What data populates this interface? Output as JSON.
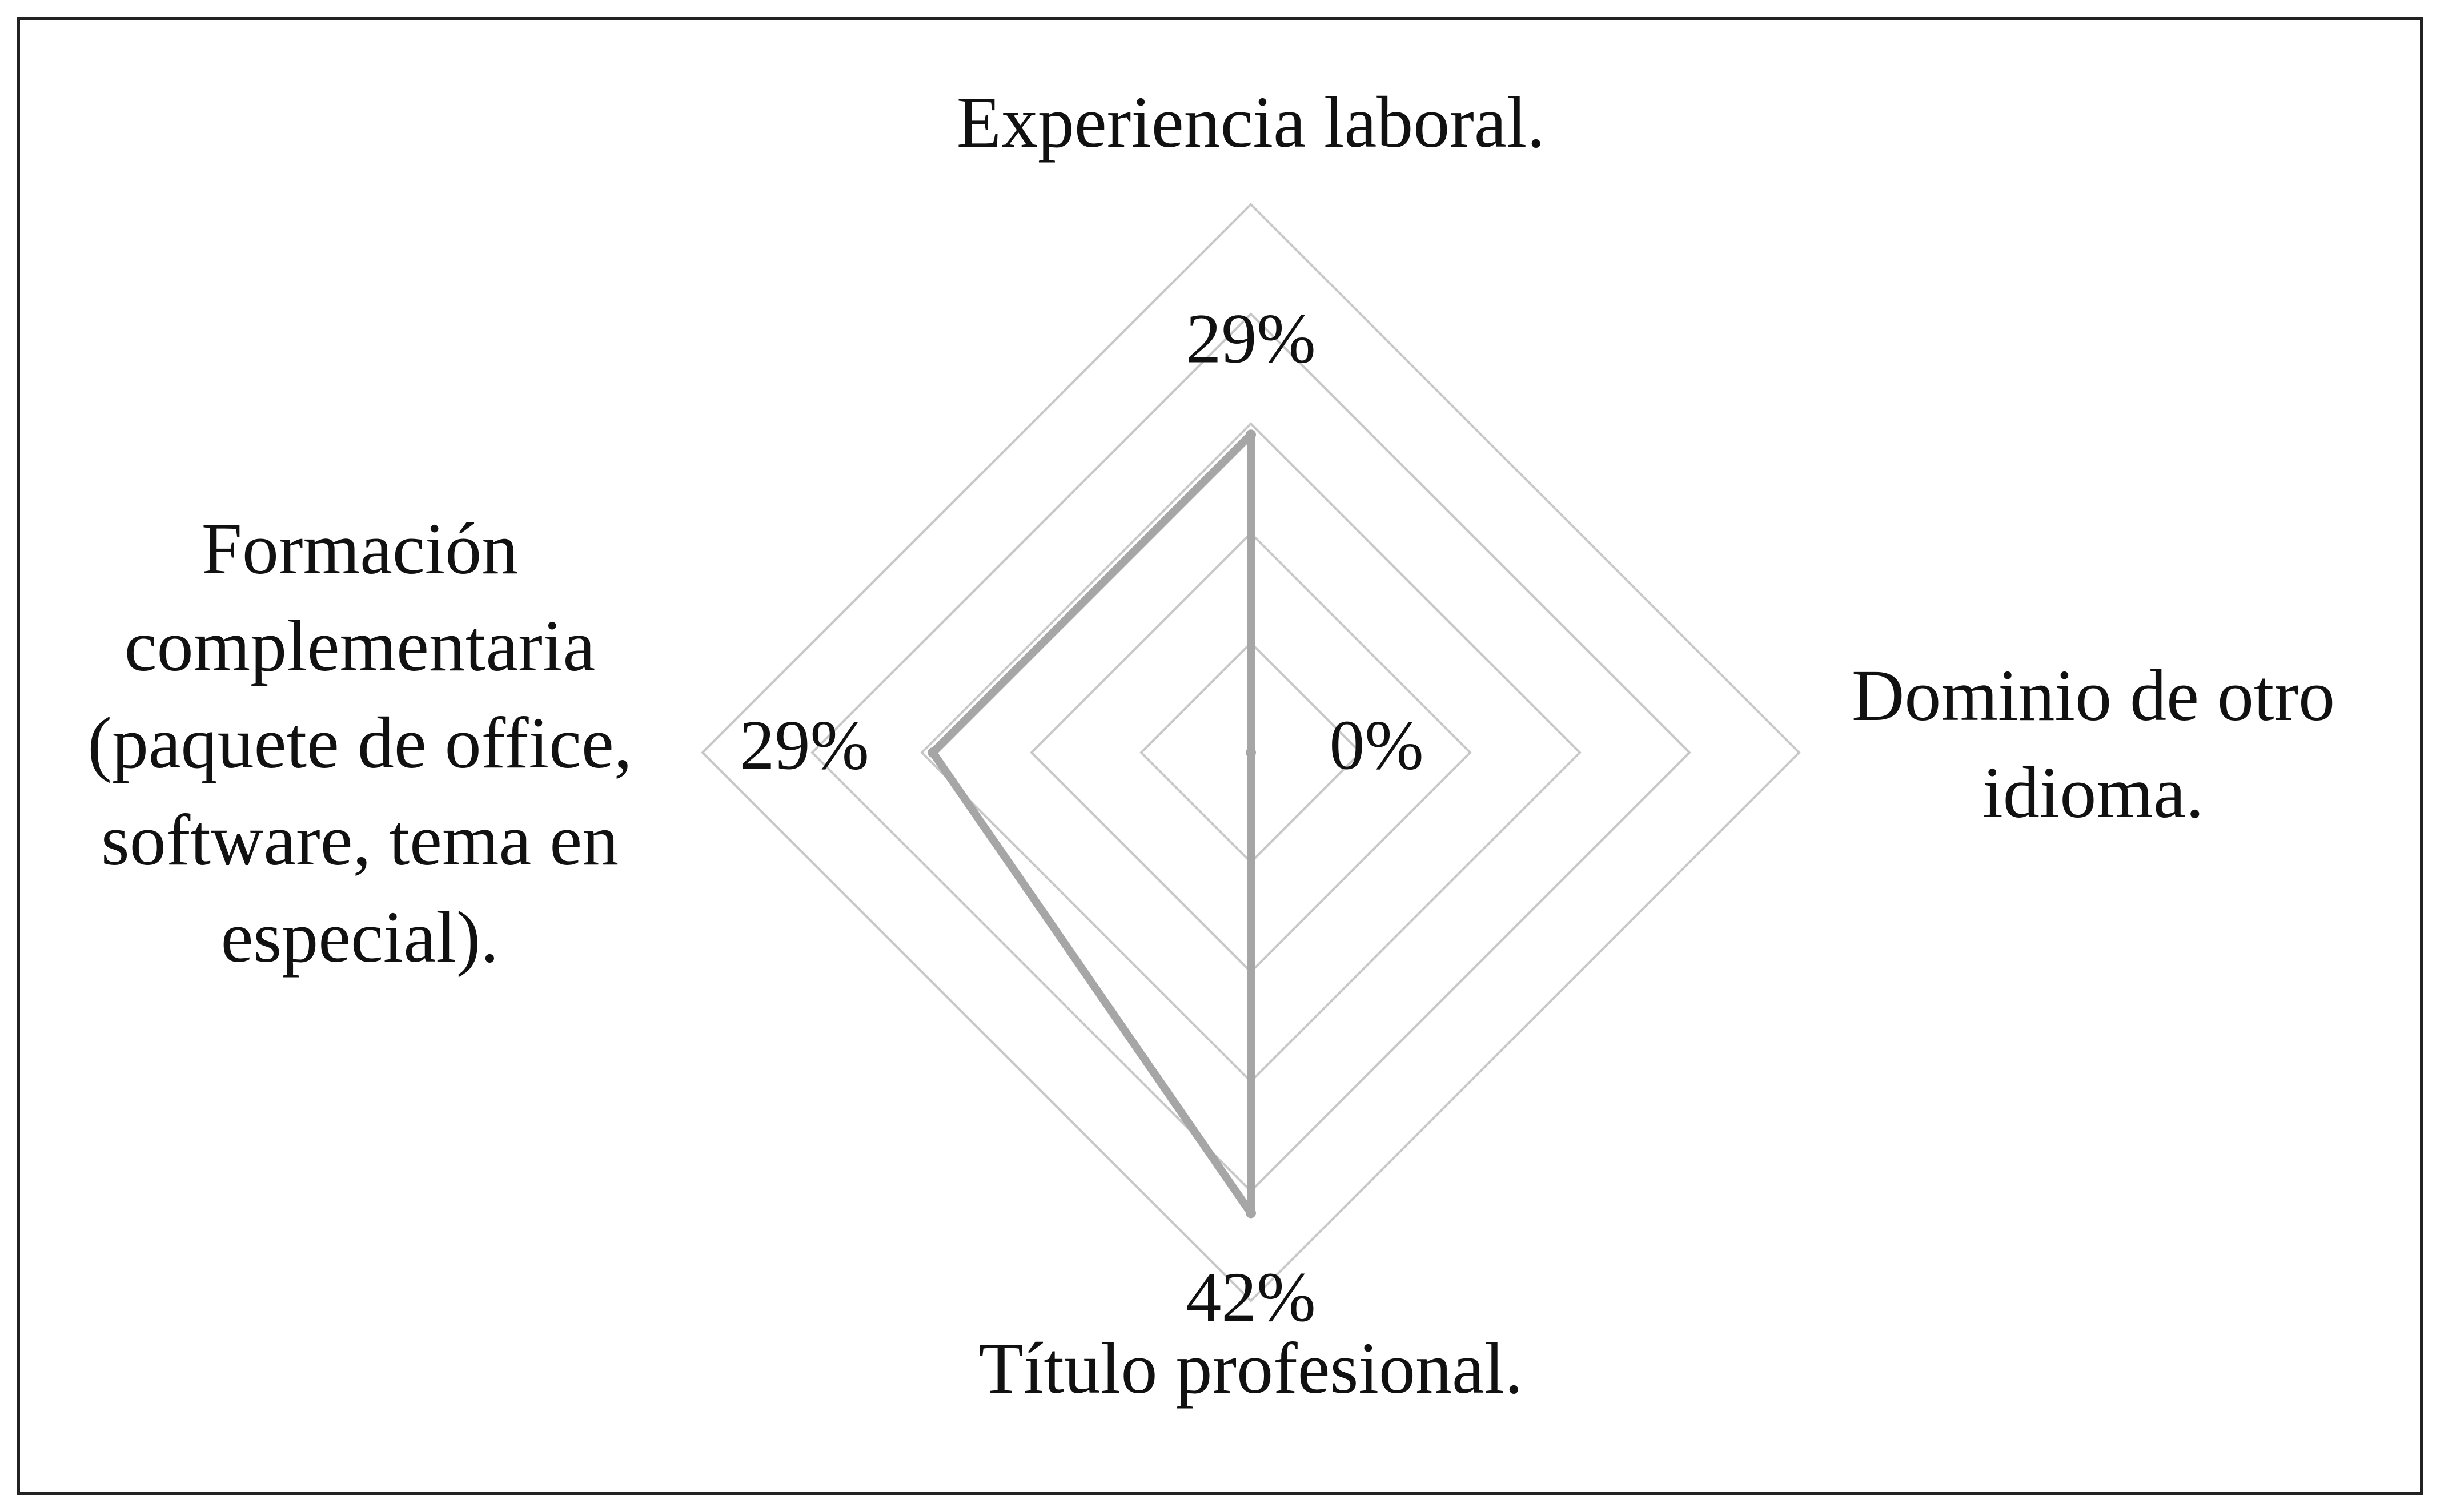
{
  "chart_data": {
    "type": "radar",
    "title": "",
    "categories": [
      "Experiencia laboral.",
      "Dominio de otro idioma.",
      "Título profesional.",
      "Formación complementaria (paquete de office, software, tema en especial)."
    ],
    "category_label_lines": [
      [
        "Experiencia laboral."
      ],
      [
        "Dominio de otro",
        "idioma."
      ],
      [
        "Título profesional."
      ],
      [
        "Formación",
        "complementaria",
        "(paquete de office,",
        "software, tema en",
        "especial)."
      ]
    ],
    "series": [
      {
        "values": [
          29,
          0,
          42,
          29
        ],
        "data_labels": [
          "29%",
          "0%",
          "42%",
          "29%"
        ],
        "color": "#a6a6a6"
      }
    ],
    "axis_range": [
      0,
      50
    ],
    "gridline_step": 10,
    "gridline_color": "#c8c8c8",
    "grid": true,
    "legend": "none",
    "value_axis_labels_shown": false
  }
}
